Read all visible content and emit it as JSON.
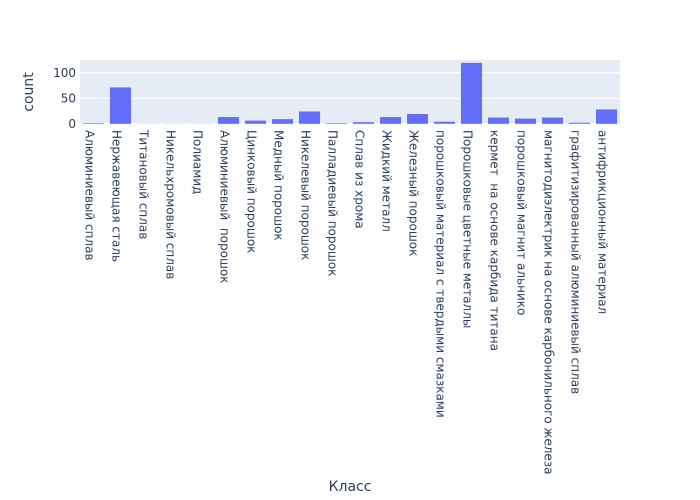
{
  "chart_data": {
    "type": "bar",
    "xlabel": "Класс",
    "ylabel": "count",
    "ylim": [
      0,
      125
    ],
    "yticks": [
      0,
      50,
      100
    ],
    "grid": true,
    "bar_color": "#636efa",
    "plot_bg": "#e5ecf6",
    "categories": [
      "Алюминиевый сплав",
      "Нержавеющая сталь",
      "Титановый сплав",
      "Никельхромовый сплав",
      "Полиамид",
      "Алюминиевый  порошок",
      "Цинковый порошок",
      "Медный порошок",
      "Никелевый порошок",
      "Палладиевый порошок",
      "Сплав из хрома",
      "Жидкий металл",
      "Железный порошок",
      "порошковый материал с твердыми смазками",
      "Порошковые цветные металлы",
      "кермет  на основе карбида титана",
      "порошковый магнит альнико",
      "магнитодиэлектрик на основе карбонильного железа",
      "графитизированный алюминиевый сплав",
      "антифрикционный материал"
    ],
    "values": [
      2,
      72,
      1,
      1,
      1,
      14,
      7,
      10,
      25,
      2,
      4,
      14,
      20,
      5,
      120,
      13,
      11,
      13,
      3,
      29
    ]
  }
}
